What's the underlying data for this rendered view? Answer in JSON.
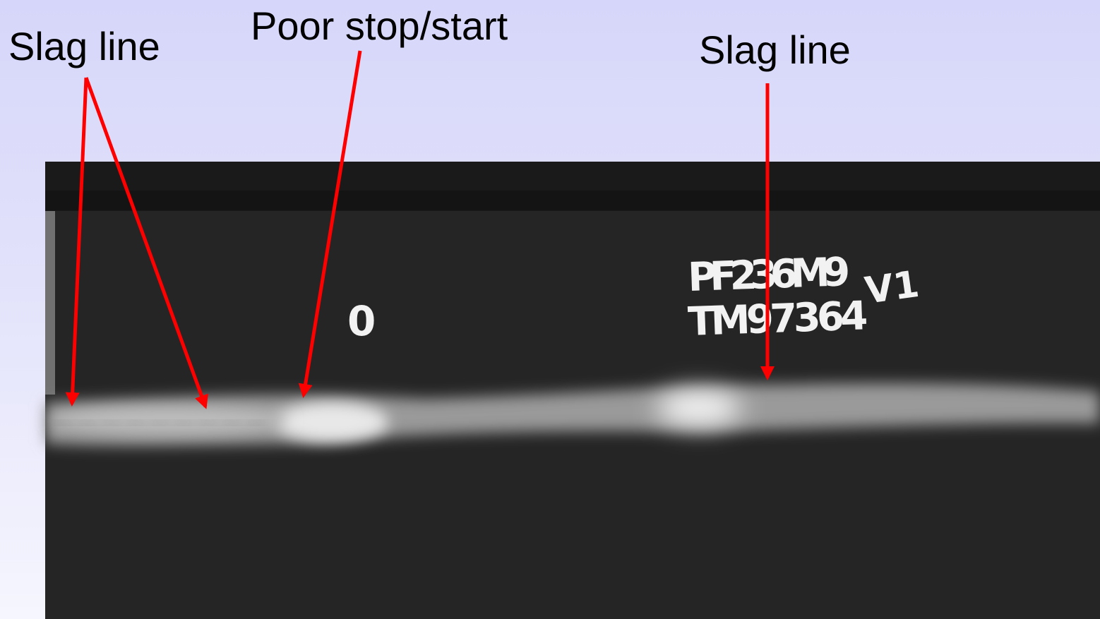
{
  "annotations": {
    "slag_line_left": "Slag line",
    "poor_stop_start": "Poor stop/start",
    "slag_line_right": "Slag line"
  },
  "film_markings": {
    "position": "0",
    "film_id": "PF236M9",
    "view": "V1",
    "job_number": "TM97364"
  }
}
